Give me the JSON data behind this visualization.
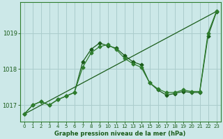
{
  "title": "Graphe pression niveau de la mer (hPa)",
  "bg_color": "#cce8e8",
  "grid_color": "#aacccc",
  "line_color1": "#1a5c1a",
  "line_color2": "#2e7d2e",
  "xlim": [
    -0.5,
    23.5
  ],
  "ylim": [
    1016.55,
    1019.85
  ],
  "yticks": [
    1017,
    1018,
    1019
  ],
  "xticks": [
    0,
    1,
    2,
    3,
    4,
    5,
    6,
    7,
    8,
    9,
    10,
    11,
    12,
    13,
    14,
    15,
    16,
    17,
    18,
    19,
    20,
    21,
    22,
    23
  ],
  "series1_x": [
    0,
    1,
    2,
    3,
    4,
    5,
    6,
    7,
    8,
    9,
    10,
    11,
    12,
    13,
    14,
    15,
    16,
    17,
    18,
    19,
    20,
    21,
    22,
    23
  ],
  "series1_y": [
    1016.75,
    1017.0,
    1017.1,
    1017.0,
    1017.15,
    1017.25,
    1017.35,
    1018.2,
    1018.55,
    1018.72,
    1018.65,
    1018.58,
    1018.38,
    1018.2,
    1018.12,
    1017.62,
    1017.42,
    1017.28,
    1017.32,
    1017.38,
    1017.35,
    1017.35,
    1018.92,
    1019.58
  ],
  "series2_x": [
    0,
    1,
    2,
    3,
    4,
    5,
    6,
    7,
    8,
    9,
    10,
    11,
    12,
    13,
    14,
    15,
    16,
    17,
    18,
    19,
    20,
    21,
    22,
    23
  ],
  "series2_y": [
    1016.75,
    1017.0,
    1017.1,
    1017.0,
    1017.15,
    1017.25,
    1017.35,
    1018.05,
    1018.45,
    1018.62,
    1018.68,
    1018.55,
    1018.3,
    1018.15,
    1018.05,
    1017.62,
    1017.45,
    1017.35,
    1017.35,
    1017.42,
    1017.38,
    1017.38,
    1019.0,
    1019.6
  ],
  "series3_x": [
    0,
    23
  ],
  "series3_y": [
    1016.75,
    1019.6
  ],
  "marker": "D",
  "markersize": 2.5,
  "linewidth": 0.9
}
